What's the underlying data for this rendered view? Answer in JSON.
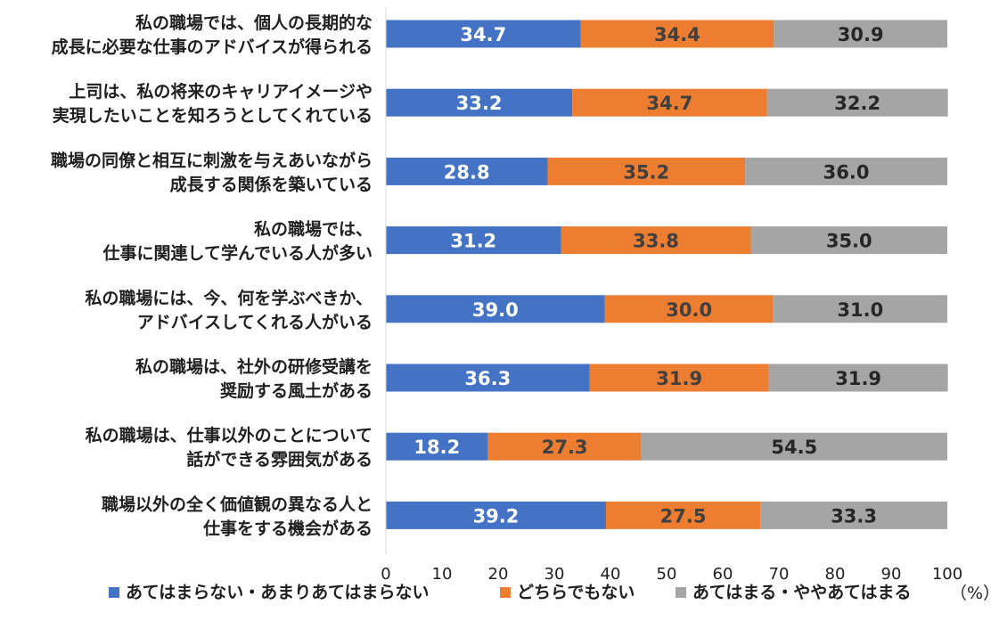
{
  "chart_data": {
    "type": "bar",
    "orientation": "horizontal",
    "stacked": true,
    "xlim": [
      0,
      100
    ],
    "xticks": [
      "0",
      "10",
      "20",
      "30",
      "40",
      "50",
      "60",
      "70",
      "80",
      "90",
      "100"
    ],
    "unit": "（%）",
    "categories": [
      [
        "私の職場では、個人の長期的な",
        "成長に必要な仕事のアドバイスが得られる"
      ],
      [
        "上司は、私の将来のキャリアイメージや",
        "実現したいことを知ろうとしてくれている"
      ],
      [
        "職場の同僚と相互に刺激を与えあいながら",
        "成長する関係を築いている"
      ],
      [
        "私の職場では、",
        "仕事に関連して学んでいる人が多い"
      ],
      [
        "私の職場には、今、何を学ぶべきか、",
        "アドバイスしてくれる人がいる"
      ],
      [
        "私の職場は、社外の研修受講を",
        "奨励する風土がある"
      ],
      [
        "私の職場は、仕事以外のことについて",
        "話ができる雰囲気がある"
      ],
      [
        "職場以外の全く価値観の異なる人と",
        "仕事をする機会がある"
      ]
    ],
    "series": [
      {
        "name": "あてはまらない・あまりあてはまらない",
        "color": "#4472c4",
        "label_color": "#ffffff",
        "values": [
          34.7,
          33.2,
          28.8,
          31.2,
          39.0,
          36.3,
          18.2,
          39.2
        ],
        "labels": [
          "34.7",
          "33.2",
          "28.8",
          "31.2",
          "39.0",
          "36.3",
          "18.2",
          "39.2"
        ]
      },
      {
        "name": "どちらでもない",
        "color": "#ed7d31",
        "label_color": "#404040",
        "values": [
          34.4,
          34.7,
          35.2,
          33.8,
          30.0,
          31.9,
          27.3,
          27.5
        ],
        "labels": [
          "34.4",
          "34.7",
          "35.2",
          "33.8",
          "30.0",
          "31.9",
          "27.3",
          "27.5"
        ]
      },
      {
        "name": "あてはまる・ややあてはまる",
        "color": "#a5a5a5",
        "label_color": "#262626",
        "values": [
          30.9,
          32.2,
          36.0,
          35.0,
          31.0,
          31.9,
          54.5,
          33.3
        ],
        "labels": [
          "30.9",
          "32.2",
          "36.0",
          "35.0",
          "31.0",
          "31.9",
          "54.5",
          "33.3"
        ]
      }
    ],
    "legend_position": "bottom",
    "grid": false
  }
}
